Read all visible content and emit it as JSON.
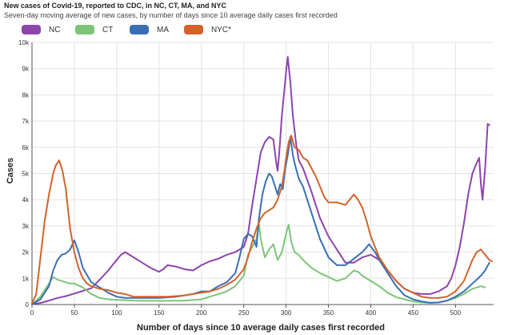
{
  "header": {
    "title": "New cases of Covid-19, reported to CDC, in NC, CT, MA, and NYC",
    "subtitle": "Seven-day moving average of new cases, by number of days since 10 average daily cases first recorded"
  },
  "chart_data": {
    "type": "line",
    "xlabel": "Number of days since 10 average daily cases first recorded",
    "ylabel": "Cases",
    "xlim": [
      0,
      545
    ],
    "ylim": [
      0,
      10000
    ],
    "x_ticks": [
      0,
      50,
      100,
      150,
      200,
      250,
      300,
      350,
      400,
      450,
      500
    ],
    "x_tick_labels": [
      "0",
      "50",
      "100",
      "150",
      "200",
      "250",
      "300",
      "350",
      "400",
      "450",
      "500"
    ],
    "y_ticks": [
      0,
      1000,
      2000,
      3000,
      4000,
      5000,
      6000,
      7000,
      8000,
      9000,
      10000
    ],
    "y_tick_labels": [
      "0",
      "1k",
      "2k",
      "3k",
      "4k",
      "5k",
      "6k",
      "7k",
      "8k",
      "9k",
      "10k"
    ],
    "grid": true,
    "legend_position": "top",
    "series": [
      {
        "name": "NC",
        "color": "#8e44ad",
        "points": [
          [
            0,
            10
          ],
          [
            10,
            60
          ],
          [
            20,
            150
          ],
          [
            30,
            250
          ],
          [
            40,
            320
          ],
          [
            50,
            420
          ],
          [
            60,
            520
          ],
          [
            70,
            620
          ],
          [
            80,
            950
          ],
          [
            90,
            1300
          ],
          [
            95,
            1500
          ],
          [
            100,
            1700
          ],
          [
            105,
            1900
          ],
          [
            110,
            2000
          ],
          [
            115,
            1900
          ],
          [
            120,
            1800
          ],
          [
            130,
            1600
          ],
          [
            140,
            1400
          ],
          [
            150,
            1250
          ],
          [
            155,
            1350
          ],
          [
            160,
            1500
          ],
          [
            170,
            1450
          ],
          [
            180,
            1350
          ],
          [
            190,
            1300
          ],
          [
            200,
            1500
          ],
          [
            210,
            1650
          ],
          [
            220,
            1750
          ],
          [
            230,
            1900
          ],
          [
            240,
            2000
          ],
          [
            250,
            2200
          ],
          [
            255,
            2700
          ],
          [
            260,
            3800
          ],
          [
            265,
            4800
          ],
          [
            270,
            5800
          ],
          [
            275,
            6200
          ],
          [
            280,
            6400
          ],
          [
            285,
            6300
          ],
          [
            288,
            5500
          ],
          [
            290,
            5100
          ],
          [
            292,
            5800
          ],
          [
            295,
            7200
          ],
          [
            298,
            8200
          ],
          [
            300,
            8900
          ],
          [
            302,
            9450
          ],
          [
            305,
            8500
          ],
          [
            308,
            7200
          ],
          [
            312,
            6100
          ],
          [
            315,
            5500
          ],
          [
            320,
            5200
          ],
          [
            330,
            4300
          ],
          [
            340,
            3300
          ],
          [
            350,
            2600
          ],
          [
            360,
            2100
          ],
          [
            370,
            1600
          ],
          [
            380,
            1600
          ],
          [
            390,
            1800
          ],
          [
            400,
            1900
          ],
          [
            410,
            1700
          ],
          [
            420,
            1300
          ],
          [
            430,
            900
          ],
          [
            440,
            600
          ],
          [
            450,
            450
          ],
          [
            460,
            400
          ],
          [
            470,
            400
          ],
          [
            480,
            500
          ],
          [
            490,
            700
          ],
          [
            495,
            1000
          ],
          [
            500,
            1500
          ],
          [
            505,
            2200
          ],
          [
            510,
            3100
          ],
          [
            515,
            4200
          ],
          [
            520,
            5000
          ],
          [
            525,
            5400
          ],
          [
            528,
            5600
          ],
          [
            530,
            4600
          ],
          [
            532,
            4000
          ],
          [
            535,
            5200
          ],
          [
            538,
            6900
          ],
          [
            540,
            6850
          ]
        ]
      },
      {
        "name": "CT",
        "color": "#7cc576",
        "points": [
          [
            0,
            10
          ],
          [
            10,
            300
          ],
          [
            20,
            800
          ],
          [
            25,
            1050
          ],
          [
            30,
            950
          ],
          [
            35,
            900
          ],
          [
            40,
            850
          ],
          [
            45,
            800
          ],
          [
            50,
            800
          ],
          [
            60,
            650
          ],
          [
            70,
            400
          ],
          [
            80,
            250
          ],
          [
            90,
            200
          ],
          [
            100,
            180
          ],
          [
            120,
            150
          ],
          [
            140,
            140
          ],
          [
            160,
            140
          ],
          [
            180,
            150
          ],
          [
            200,
            200
          ],
          [
            210,
            300
          ],
          [
            220,
            400
          ],
          [
            230,
            500
          ],
          [
            240,
            700
          ],
          [
            250,
            1100
          ],
          [
            255,
            1900
          ],
          [
            260,
            2200
          ],
          [
            265,
            2500
          ],
          [
            268,
            3100
          ],
          [
            270,
            2500
          ],
          [
            275,
            1800
          ],
          [
            280,
            2100
          ],
          [
            285,
            2300
          ],
          [
            290,
            1700
          ],
          [
            295,
            2000
          ],
          [
            300,
            2700
          ],
          [
            303,
            3050
          ],
          [
            306,
            2400
          ],
          [
            310,
            2000
          ],
          [
            315,
            1900
          ],
          [
            320,
            1700
          ],
          [
            330,
            1400
          ],
          [
            340,
            1200
          ],
          [
            350,
            1050
          ],
          [
            360,
            900
          ],
          [
            370,
            1000
          ],
          [
            380,
            1300
          ],
          [
            385,
            1250
          ],
          [
            390,
            1100
          ],
          [
            400,
            900
          ],
          [
            410,
            700
          ],
          [
            420,
            450
          ],
          [
            430,
            280
          ],
          [
            440,
            200
          ],
          [
            450,
            120
          ],
          [
            460,
            80
          ],
          [
            470,
            60
          ],
          [
            480,
            80
          ],
          [
            490,
            150
          ],
          [
            500,
            250
          ],
          [
            510,
            400
          ],
          [
            520,
            600
          ],
          [
            530,
            700
          ],
          [
            535,
            650
          ]
        ]
      },
      {
        "name": "MA",
        "color": "#3a6fb4",
        "points": [
          [
            0,
            10
          ],
          [
            10,
            200
          ],
          [
            20,
            700
          ],
          [
            25,
            1300
          ],
          [
            30,
            1700
          ],
          [
            35,
            1900
          ],
          [
            40,
            1950
          ],
          [
            45,
            2100
          ],
          [
            50,
            2450
          ],
          [
            55,
            2000
          ],
          [
            60,
            1400
          ],
          [
            70,
            850
          ],
          [
            80,
            650
          ],
          [
            90,
            450
          ],
          [
            100,
            300
          ],
          [
            110,
            250
          ],
          [
            120,
            250
          ],
          [
            130,
            250
          ],
          [
            150,
            250
          ],
          [
            170,
            300
          ],
          [
            190,
            400
          ],
          [
            200,
            500
          ],
          [
            210,
            500
          ],
          [
            220,
            700
          ],
          [
            230,
            850
          ],
          [
            240,
            1200
          ],
          [
            245,
            1800
          ],
          [
            250,
            2500
          ],
          [
            255,
            2700
          ],
          [
            260,
            2600
          ],
          [
            265,
            2200
          ],
          [
            268,
            3300
          ],
          [
            272,
            4200
          ],
          [
            276,
            4700
          ],
          [
            280,
            5000
          ],
          [
            283,
            4900
          ],
          [
            286,
            4600
          ],
          [
            290,
            4200
          ],
          [
            293,
            4600
          ],
          [
            296,
            4400
          ],
          [
            299,
            5200
          ],
          [
            302,
            5700
          ],
          [
            305,
            6400
          ],
          [
            308,
            5700
          ],
          [
            310,
            5400
          ],
          [
            315,
            4800
          ],
          [
            320,
            4500
          ],
          [
            330,
            3500
          ],
          [
            340,
            2500
          ],
          [
            350,
            1800
          ],
          [
            360,
            1500
          ],
          [
            370,
            1500
          ],
          [
            380,
            1750
          ],
          [
            390,
            2000
          ],
          [
            398,
            2300
          ],
          [
            405,
            2000
          ],
          [
            410,
            1700
          ],
          [
            420,
            1200
          ],
          [
            430,
            700
          ],
          [
            440,
            350
          ],
          [
            450,
            200
          ],
          [
            460,
            120
          ],
          [
            470,
            70
          ],
          [
            480,
            80
          ],
          [
            490,
            150
          ],
          [
            500,
            300
          ],
          [
            510,
            500
          ],
          [
            520,
            800
          ],
          [
            530,
            1100
          ],
          [
            535,
            1300
          ],
          [
            540,
            1600
          ]
        ]
      },
      {
        "name": "NYC*",
        "color": "#d2632b",
        "points": [
          [
            0,
            50
          ],
          [
            5,
            400
          ],
          [
            10,
            1800
          ],
          [
            15,
            3200
          ],
          [
            20,
            4200
          ],
          [
            25,
            5000
          ],
          [
            28,
            5300
          ],
          [
            32,
            5500
          ],
          [
            36,
            5100
          ],
          [
            40,
            4400
          ],
          [
            45,
            2900
          ],
          [
            50,
            2000
          ],
          [
            55,
            1400
          ],
          [
            60,
            1000
          ],
          [
            65,
            800
          ],
          [
            70,
            700
          ],
          [
            80,
            600
          ],
          [
            90,
            550
          ],
          [
            100,
            450
          ],
          [
            110,
            400
          ],
          [
            120,
            300
          ],
          [
            130,
            300
          ],
          [
            140,
            300
          ],
          [
            150,
            300
          ],
          [
            160,
            300
          ],
          [
            170,
            320
          ],
          [
            180,
            350
          ],
          [
            190,
            400
          ],
          [
            200,
            450
          ],
          [
            210,
            500
          ],
          [
            220,
            600
          ],
          [
            230,
            750
          ],
          [
            240,
            950
          ],
          [
            250,
            1350
          ],
          [
            255,
            1800
          ],
          [
            260,
            2400
          ],
          [
            265,
            2900
          ],
          [
            270,
            3300
          ],
          [
            275,
            3500
          ],
          [
            280,
            3600
          ],
          [
            285,
            3700
          ],
          [
            290,
            4000
          ],
          [
            295,
            4500
          ],
          [
            298,
            5100
          ],
          [
            300,
            5600
          ],
          [
            303,
            6200
          ],
          [
            306,
            6450
          ],
          [
            310,
            6000
          ],
          [
            315,
            5900
          ],
          [
            320,
            5600
          ],
          [
            325,
            5500
          ],
          [
            330,
            5200
          ],
          [
            335,
            4900
          ],
          [
            340,
            4500
          ],
          [
            345,
            4100
          ],
          [
            350,
            3900
          ],
          [
            360,
            3900
          ],
          [
            370,
            3800
          ],
          [
            380,
            4200
          ],
          [
            385,
            4000
          ],
          [
            390,
            3700
          ],
          [
            395,
            3200
          ],
          [
            400,
            2600
          ],
          [
            405,
            2200
          ],
          [
            410,
            1800
          ],
          [
            420,
            1300
          ],
          [
            430,
            900
          ],
          [
            440,
            600
          ],
          [
            450,
            450
          ],
          [
            460,
            300
          ],
          [
            470,
            250
          ],
          [
            480,
            250
          ],
          [
            490,
            300
          ],
          [
            500,
            500
          ],
          [
            510,
            900
          ],
          [
            515,
            1300
          ],
          [
            520,
            1700
          ],
          [
            525,
            2000
          ],
          [
            530,
            2100
          ],
          [
            535,
            1900
          ],
          [
            540,
            1700
          ],
          [
            543,
            1650
          ]
        ]
      }
    ]
  }
}
